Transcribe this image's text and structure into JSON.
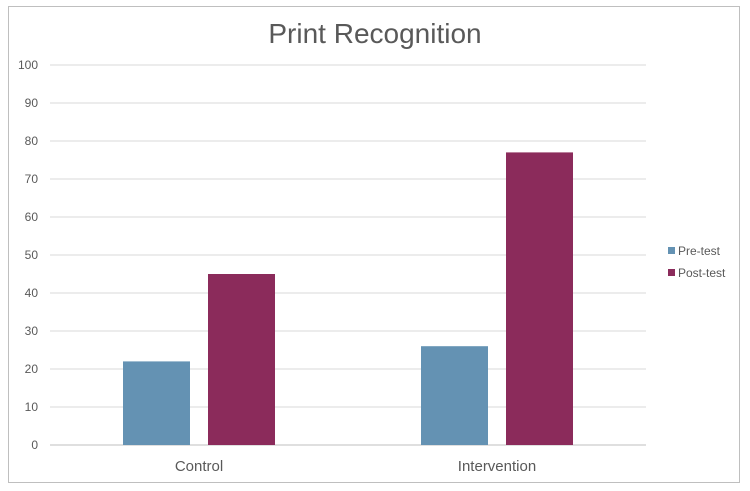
{
  "chart_data": {
    "type": "bar",
    "title": "Print Recognition",
    "categories": [
      "Control",
      "Intervention"
    ],
    "series": [
      {
        "name": "Pre-test",
        "values": [
          22,
          26
        ],
        "color": "#6492b3"
      },
      {
        "name": "Post-test",
        "values": [
          45,
          77
        ],
        "color": "#8b2b5b"
      }
    ],
    "ylim": [
      0,
      100
    ],
    "yticks": [
      0,
      10,
      20,
      30,
      40,
      50,
      60,
      70,
      80,
      90,
      100
    ],
    "grid": true,
    "legend": "right"
  }
}
